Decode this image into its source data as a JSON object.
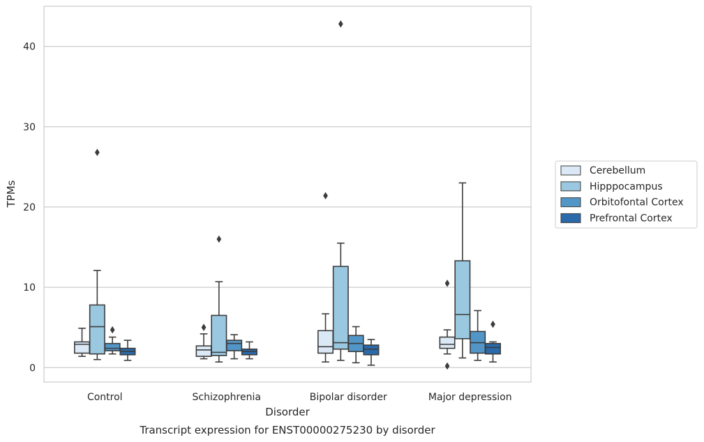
{
  "chart_data": {
    "type": "boxplot",
    "caption": "Transcript expression for ENST00000275230 by disorder",
    "xlabel": "Disorder",
    "ylabel": "TPMs",
    "ylim": [
      -1.8,
      45
    ],
    "yticks": [
      0,
      10,
      20,
      30,
      40
    ],
    "grid": "horizontal",
    "legend_position": "right",
    "categories": [
      "Control",
      "Schizophrenia",
      "Bipolar disorder",
      "Major depression"
    ],
    "series": [
      {
        "name": "Cerebellum",
        "color": "#dbe9f6",
        "boxes": [
          {
            "whislo": 1.4,
            "q1": 1.8,
            "med": 2.9,
            "q3": 3.2,
            "whishi": 4.9,
            "fliers": []
          },
          {
            "whislo": 1.1,
            "q1": 1.4,
            "med": 2.2,
            "q3": 2.7,
            "whishi": 4.2,
            "fliers": [
              5.0
            ]
          },
          {
            "whislo": 0.7,
            "q1": 1.8,
            "med": 2.6,
            "q3": 4.6,
            "whishi": 6.7,
            "fliers": [
              21.4
            ]
          },
          {
            "whislo": 1.7,
            "q1": 2.4,
            "med": 2.9,
            "q3": 3.8,
            "whishi": 4.7,
            "fliers": [
              10.5,
              0.2
            ]
          }
        ]
      },
      {
        "name": "Hipppocampus",
        "color": "#9ac8e0",
        "boxes": [
          {
            "whislo": 1.0,
            "q1": 1.7,
            "med": 5.1,
            "q3": 7.8,
            "whishi": 12.1,
            "fliers": [
              26.8
            ]
          },
          {
            "whislo": 0.7,
            "q1": 1.5,
            "med": 1.9,
            "q3": 6.5,
            "whishi": 10.7,
            "fliers": [
              16.0
            ]
          },
          {
            "whislo": 0.9,
            "q1": 2.3,
            "med": 3.1,
            "q3": 12.6,
            "whishi": 15.5,
            "fliers": [
              42.8
            ]
          },
          {
            "whislo": 1.2,
            "q1": 3.6,
            "med": 6.6,
            "q3": 13.3,
            "whishi": 23.0,
            "fliers": []
          }
        ]
      },
      {
        "name": "Orbitofontal Cortex",
        "color": "#5296c8",
        "boxes": [
          {
            "whislo": 1.7,
            "q1": 2.1,
            "med": 2.4,
            "q3": 3.0,
            "whishi": 3.8,
            "fliers": [
              4.7
            ]
          },
          {
            "whislo": 1.1,
            "q1": 2.1,
            "med": 3.0,
            "q3": 3.4,
            "whishi": 4.1,
            "fliers": []
          },
          {
            "whislo": 0.6,
            "q1": 2.0,
            "med": 3.0,
            "q3": 4.0,
            "whishi": 5.1,
            "fliers": []
          },
          {
            "whislo": 0.9,
            "q1": 1.8,
            "med": 3.1,
            "q3": 4.5,
            "whishi": 7.1,
            "fliers": []
          }
        ]
      },
      {
        "name": "Prefrontal Cortex",
        "color": "#2a6aab",
        "boxes": [
          {
            "whislo": 0.9,
            "q1": 1.6,
            "med": 2.0,
            "q3": 2.4,
            "whishi": 3.4,
            "fliers": []
          },
          {
            "whislo": 1.1,
            "q1": 1.6,
            "med": 2.0,
            "q3": 2.3,
            "whishi": 3.2,
            "fliers": []
          },
          {
            "whislo": 0.3,
            "q1": 1.6,
            "med": 2.3,
            "q3": 2.8,
            "whishi": 3.5,
            "fliers": []
          },
          {
            "whislo": 0.7,
            "q1": 1.7,
            "med": 2.5,
            "q3": 3.0,
            "whishi": 3.2,
            "fliers": [
              5.4
            ]
          }
        ]
      }
    ]
  }
}
